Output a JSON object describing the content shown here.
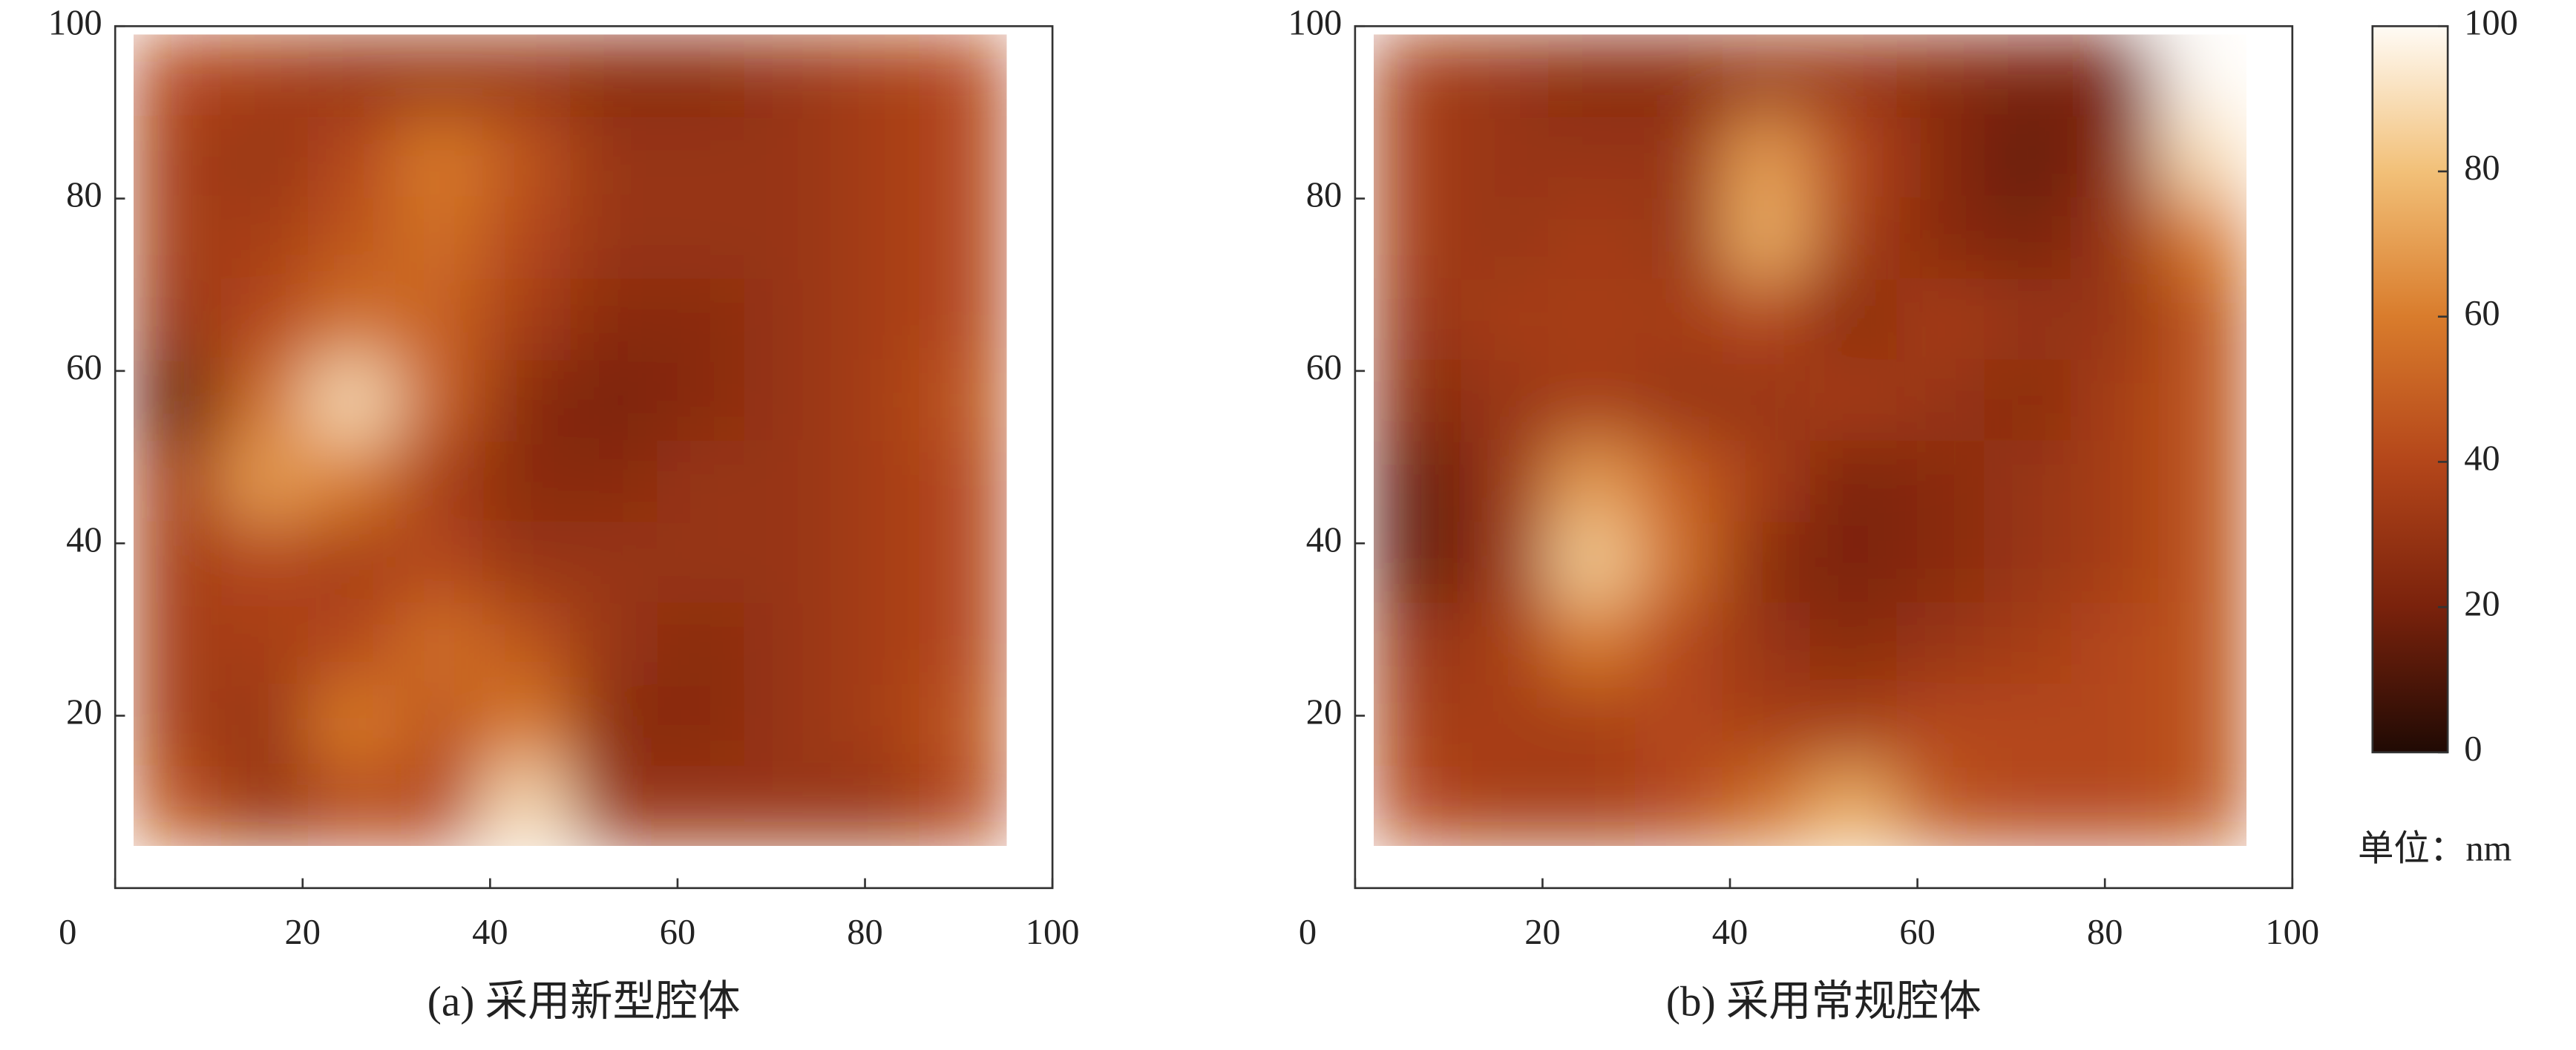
{
  "chart_data": [
    {
      "type": "heatmap",
      "caption": "(a) 采用新型腔体",
      "xlim": [
        0,
        100
      ],
      "ylim": [
        0,
        100
      ],
      "xticks": [
        0,
        20,
        40,
        60,
        80,
        100
      ],
      "yticks": [
        20,
        40,
        60,
        80,
        100
      ],
      "extent": [
        2,
        95,
        5,
        99
      ],
      "z": [
        [
          45,
          30,
          40,
          40,
          90,
          30,
          30,
          30,
          30,
          40
        ],
        [
          35,
          30,
          60,
          45,
          60,
          25,
          25,
          30,
          35,
          45
        ],
        [
          35,
          35,
          40,
          55,
          45,
          30,
          25,
          30,
          35,
          40
        ],
        [
          35,
          40,
          35,
          40,
          30,
          30,
          30,
          30,
          35,
          40
        ],
        [
          35,
          70,
          60,
          35,
          25,
          25,
          30,
          30,
          35,
          40
        ],
        [
          15,
          55,
          90,
          50,
          25,
          20,
          25,
          30,
          35,
          45
        ],
        [
          30,
          40,
          55,
          50,
          35,
          25,
          25,
          30,
          35,
          40
        ],
        [
          35,
          35,
          45,
          55,
          40,
          30,
          30,
          30,
          35,
          40
        ],
        [
          35,
          30,
          40,
          60,
          45,
          30,
          30,
          30,
          35,
          40
        ],
        [
          40,
          35,
          30,
          30,
          30,
          25,
          25,
          30,
          35,
          40
        ]
      ]
    },
    {
      "type": "heatmap",
      "caption": "(b) 采用常规腔体",
      "xlim": [
        0,
        100
      ],
      "ylim": [
        0,
        100
      ],
      "xticks": [
        0,
        20,
        40,
        60,
        80,
        100
      ],
      "yticks": [
        20,
        40,
        60,
        80,
        100
      ],
      "extent": [
        2,
        95,
        5,
        99
      ],
      "z": [
        [
          40,
          35,
          35,
          40,
          55,
          75,
          45,
          40,
          40,
          45
        ],
        [
          35,
          35,
          35,
          40,
          35,
          35,
          40,
          40,
          40,
          45
        ],
        [
          30,
          35,
          60,
          40,
          30,
          25,
          30,
          35,
          40,
          45
        ],
        [
          15,
          30,
          85,
          55,
          25,
          20,
          25,
          30,
          35,
          45
        ],
        [
          15,
          30,
          70,
          50,
          35,
          20,
          25,
          30,
          35,
          45
        ],
        [
          25,
          30,
          35,
          30,
          30,
          35,
          30,
          25,
          35,
          45
        ],
        [
          30,
          35,
          35,
          35,
          40,
          25,
          35,
          30,
          30,
          45
        ],
        [
          35,
          30,
          35,
          30,
          75,
          35,
          25,
          20,
          30,
          60
        ],
        [
          35,
          30,
          30,
          30,
          70,
          40,
          25,
          15,
          25,
          90
        ],
        [
          35,
          30,
          25,
          25,
          30,
          30,
          25,
          20,
          20,
          100
        ]
      ]
    }
  ],
  "colorbar": {
    "lim": [
      0,
      100
    ],
    "ticks": [
      0,
      20,
      40,
      60,
      80,
      100
    ],
    "label": "单位：nm",
    "colormap": [
      "#200a04",
      "#7a220c",
      "#b4461a",
      "#d97c2c",
      "#f2c078",
      "#fffbf5"
    ]
  }
}
